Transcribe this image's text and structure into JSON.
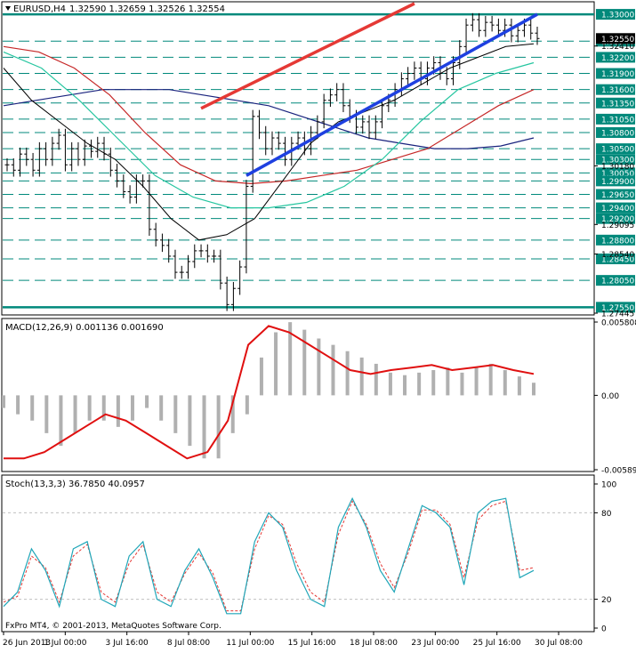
{
  "chart_data": {
    "type": "candlestick",
    "symbol_label": "EURUSD,H4",
    "ohlc_label": "1.32590 1.32659 1.32526 1.32554",
    "watermark": "FxPro MT4, © 2001-2013, MetaQuotes Software Corp.",
    "x_ticks": [
      "26 Jun 2013",
      "1 Jul 00:00",
      "3 Jul 16:00",
      "8 Jul 08:00",
      "11 Jul 00:00",
      "15 Jul 16:00",
      "18 Jul 08:00",
      "23 Jul 00:00",
      "25 Jul 16:00",
      "30 Jul 08:00"
    ],
    "price": {
      "ylim": [
        1.2744,
        1.332
      ],
      "close_path": [
        1.302,
        1.301,
        1.304,
        1.303,
        1.301,
        1.305,
        1.303,
        1.306,
        1.3075,
        1.302,
        1.305,
        1.303,
        1.3055,
        1.3045,
        1.306,
        1.304,
        1.301,
        1.299,
        1.297,
        1.296,
        1.299,
        1.299,
        1.29,
        1.288,
        1.287,
        1.285,
        1.282,
        1.282,
        1.284,
        1.286,
        1.286,
        1.285,
        1.285,
        1.28,
        1.276,
        1.279,
        1.283,
        1.298,
        1.311,
        1.308,
        1.305,
        1.307,
        1.306,
        1.303,
        1.306,
        1.307,
        1.305,
        1.308,
        1.31,
        1.314,
        1.315,
        1.316,
        1.313,
        1.311,
        1.309,
        1.31,
        1.308,
        1.31,
        1.313,
        1.314,
        1.316,
        1.318,
        1.319,
        1.32,
        1.318,
        1.32,
        1.321,
        1.319,
        1.318,
        1.321,
        1.324,
        1.328,
        1.329,
        1.327,
        1.3285,
        1.328,
        1.327,
        1.328,
        1.326,
        1.327,
        1.328,
        1.3265,
        1.3255
      ],
      "levels": [
        {
          "value": 1.33,
          "label": "1.33000",
          "style": "solid",
          "color": "#00897b"
        },
        {
          "value": 1.325,
          "label": "1.32500",
          "style": "dash",
          "color": "#00897b"
        },
        {
          "value": 1.322,
          "label": "1.32200",
          "style": "dash",
          "color": "#00897b"
        },
        {
          "value": 1.319,
          "label": "1.31900",
          "style": "dash",
          "color": "#00897b"
        },
        {
          "value": 1.316,
          "label": "1.31600",
          "style": "dash",
          "color": "#00897b"
        },
        {
          "value": 1.3135,
          "label": "1.31350",
          "style": "dash",
          "color": "#00897b"
        },
        {
          "value": 1.3105,
          "label": "1.31050",
          "style": "dash",
          "color": "#00897b"
        },
        {
          "value": 1.308,
          "label": "1.30800",
          "style": "dash",
          "color": "#00897b"
        },
        {
          "value": 1.305,
          "label": "1.30500",
          "style": "dash",
          "color": "#00897b"
        },
        {
          "value": 1.303,
          "label": "1.30300",
          "style": "dash",
          "color": "#00897b"
        },
        {
          "value": 1.3005,
          "label": "1.30050",
          "style": "dash",
          "color": "#00897b"
        },
        {
          "value": 1.299,
          "label": "1.29900",
          "style": "dash",
          "color": "#00897b"
        },
        {
          "value": 1.2965,
          "label": "1.29650",
          "style": "dash",
          "color": "#00897b"
        },
        {
          "value": 1.294,
          "label": "1.29400",
          "style": "dash",
          "color": "#00897b"
        },
        {
          "value": 1.292,
          "label": "1.29200",
          "style": "dash",
          "color": "#00897b"
        },
        {
          "value": 1.288,
          "label": "1.28800",
          "style": "dash",
          "color": "#00897b"
        },
        {
          "value": 1.2845,
          "label": "1.28450",
          "style": "dash",
          "color": "#00897b"
        },
        {
          "value": 1.2805,
          "label": "1.28050",
          "style": "dash",
          "color": "#00897b"
        },
        {
          "value": 1.2755,
          "label": "1.27550",
          "style": "solid",
          "color": "#00897b"
        }
      ],
      "scale_ticks": [
        {
          "value": 1.3241,
          "label": "1.32410"
        },
        {
          "value": 1.3018,
          "label": "1.30180"
        },
        {
          "value": 1.2909,
          "label": "1.29095"
        },
        {
          "value": 1.2854,
          "label": "1.28540"
        },
        {
          "value": 1.2744,
          "label": "1.27445"
        }
      ],
      "current_price": 1.3255,
      "red_channel": [
        [
          30,
          1.3125
        ],
        [
          63,
          1.332
        ]
      ],
      "blue_trend": [
        [
          37,
          1.3
        ],
        [
          82,
          1.33
        ]
      ],
      "ma_blue": [
        1.313,
        1.314,
        1.315,
        1.316,
        1.316,
        1.316,
        1.315,
        1.314,
        1.313,
        1.311,
        1.309,
        1.307,
        1.306,
        1.305,
        1.305,
        1.3055,
        1.307
      ],
      "ma_red": [
        1.324,
        1.323,
        1.32,
        1.315,
        1.308,
        1.302,
        1.299,
        1.2985,
        1.299,
        1.3,
        1.301,
        1.303,
        1.305,
        1.309,
        1.313,
        1.316
      ],
      "ma_green": [
        1.323,
        1.32,
        1.314,
        1.307,
        1.3,
        1.296,
        1.294,
        1.294,
        1.295,
        1.298,
        1.303,
        1.31,
        1.316,
        1.319,
        1.321
      ],
      "ma_black": [
        1.32,
        1.314,
        1.31,
        1.306,
        1.303,
        1.298,
        1.292,
        1.288,
        1.289,
        1.292,
        1.299,
        1.306,
        1.31,
        1.312,
        1.314,
        1.317,
        1.32,
        1.322,
        1.324,
        1.3245
      ]
    },
    "macd": {
      "label": "MACD(12,26,9) 0.001136 0.001690",
      "ylim": [
        -0.005895,
        0.005808
      ],
      "scale_ticks": [
        {
          "value": 0.005808,
          "label": "0.005808"
        },
        {
          "value": 0.0,
          "label": "0.00"
        },
        {
          "value": -0.005895,
          "label": "-0.005895"
        }
      ],
      "histogram": [
        -0.001,
        -0.0015,
        -0.002,
        -0.003,
        -0.004,
        -0.003,
        -0.002,
        -0.002,
        -0.0025,
        -0.002,
        -0.001,
        -0.002,
        -0.003,
        -0.004,
        -0.005,
        -0.005,
        -0.003,
        -0.0015,
        0.003,
        0.005,
        0.0058,
        0.0052,
        0.0045,
        0.004,
        0.0035,
        0.003,
        0.0025,
        0.0018,
        0.0016,
        0.0018,
        0.002,
        0.0022,
        0.0018,
        0.0022,
        0.0025,
        0.002,
        0.0015,
        0.001
      ],
      "signal": [
        -0.005,
        -0.005,
        -0.0045,
        -0.0035,
        -0.0025,
        -0.0015,
        -0.002,
        -0.003,
        -0.004,
        -0.005,
        -0.0045,
        -0.002,
        0.004,
        0.0055,
        0.005,
        0.004,
        0.003,
        0.002,
        0.0017,
        0.002,
        0.0022,
        0.0024,
        0.002,
        0.0022,
        0.0024,
        0.002,
        0.0017
      ]
    },
    "stoch": {
      "label": "Stoch(13,3,3) 36.7850 40.0957",
      "ylim": [
        0,
        100
      ],
      "scale_ticks": [
        {
          "value": 100,
          "label": "100"
        },
        {
          "value": 80,
          "label": "80"
        },
        {
          "value": 20,
          "label": "20"
        },
        {
          "value": 0,
          "label": "0"
        }
      ],
      "main": [
        15,
        25,
        55,
        40,
        15,
        55,
        60,
        20,
        15,
        50,
        60,
        20,
        15,
        40,
        55,
        35,
        10,
        10,
        60,
        80,
        70,
        40,
        20,
        15,
        70,
        90,
        70,
        40,
        25,
        55,
        85,
        80,
        70,
        30,
        80,
        88,
        90,
        35,
        40
      ],
      "signal": [
        18,
        22,
        50,
        42,
        18,
        50,
        58,
        25,
        18,
        45,
        58,
        25,
        18,
        38,
        52,
        38,
        12,
        12,
        55,
        78,
        72,
        45,
        25,
        18,
        65,
        88,
        72,
        45,
        28,
        52,
        82,
        82,
        72,
        35,
        75,
        85,
        88,
        40,
        42
      ]
    }
  }
}
